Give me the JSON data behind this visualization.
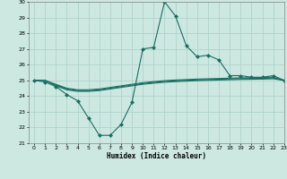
{
  "xlabel": "Humidex (Indice chaleur)",
  "background_color": "#cce8e0",
  "grid_color": "#aacfc8",
  "line_color": "#1a6e64",
  "x_values": [
    0,
    1,
    2,
    3,
    4,
    5,
    6,
    7,
    8,
    9,
    10,
    11,
    12,
    13,
    14,
    15,
    16,
    17,
    18,
    19,
    20,
    21,
    22,
    23
  ],
  "series1": [
    25.0,
    24.9,
    24.6,
    24.1,
    23.7,
    22.6,
    21.5,
    21.5,
    22.2,
    23.6,
    27.0,
    27.1,
    30.0,
    29.1,
    27.2,
    26.5,
    26.6,
    26.3,
    25.3,
    25.3,
    25.2,
    25.2,
    25.3,
    25.0
  ],
  "series2": [
    25.0,
    25.0,
    24.65,
    24.4,
    24.3,
    24.3,
    24.35,
    24.45,
    24.55,
    24.65,
    24.75,
    24.82,
    24.88,
    24.92,
    24.95,
    24.98,
    25.0,
    25.02,
    25.04,
    25.06,
    25.07,
    25.08,
    25.1,
    25.0
  ],
  "series3": [
    25.0,
    25.0,
    24.7,
    24.45,
    24.35,
    24.35,
    24.4,
    24.5,
    24.6,
    24.7,
    24.8,
    24.87,
    24.93,
    24.97,
    25.0,
    25.03,
    25.05,
    25.07,
    25.09,
    25.11,
    25.12,
    25.13,
    25.15,
    25.0
  ],
  "series4": [
    25.0,
    25.0,
    24.75,
    24.5,
    24.4,
    24.4,
    24.45,
    24.55,
    24.65,
    24.75,
    24.85,
    24.92,
    24.98,
    25.02,
    25.05,
    25.08,
    25.1,
    25.12,
    25.14,
    25.16,
    25.17,
    25.18,
    25.2,
    25.0
  ],
  "ylim": [
    21,
    30
  ],
  "xlim": [
    -0.5,
    23
  ],
  "yticks": [
    21,
    22,
    23,
    24,
    25,
    26,
    27,
    28,
    29,
    30
  ],
  "xticks": [
    0,
    1,
    2,
    3,
    4,
    5,
    6,
    7,
    8,
    9,
    10,
    11,
    12,
    13,
    14,
    15,
    16,
    17,
    18,
    19,
    20,
    21,
    22,
    23
  ]
}
